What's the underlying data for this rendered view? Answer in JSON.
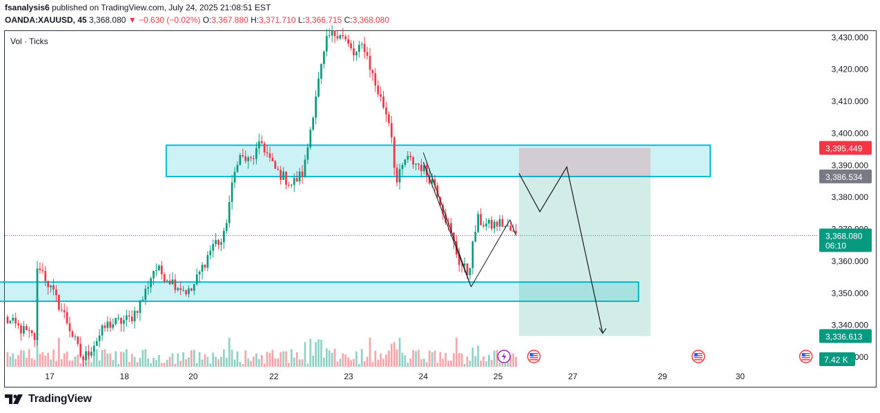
{
  "header": {
    "author": "fsanalysis6",
    "published_text": "published on TradingView.com, July 24, 2025 21:08:51 EST",
    "symbol": "OANDA:XAUUSD, 45",
    "last": "3,368.080",
    "change_arrow": "▼",
    "change": "−0.630 (−0.02%)",
    "o_label": "O:",
    "o_value": "3,367.880",
    "h_label": "H:",
    "h_value": "3,371.710",
    "l_label": "L:",
    "l_value": "3,366.715",
    "c_label": "C:",
    "c_value": "3,368.080"
  },
  "vol_label": "Vol · Ticks",
  "footer": {
    "brand": "TradingView",
    "logo_icon": "tradingview-logo-icon"
  },
  "colors": {
    "up": "#089981",
    "down": "#f23645",
    "zone": "#00bcd4",
    "target": "#089981",
    "stop": "#f23645"
  },
  "chart_data": {
    "type": "candlestick",
    "x_ticks": [
      {
        "label": "17",
        "x": 16.75
      },
      {
        "label": "18",
        "x": 18.0
      },
      {
        "label": "20",
        "x": 19.15
      },
      {
        "label": "22",
        "x": 20.5
      },
      {
        "label": "23",
        "x": 21.75
      },
      {
        "label": "24",
        "x": 23.0
      },
      {
        "label": "25",
        "x": 24.25
      },
      {
        "label": "27",
        "x": 25.5
      },
      {
        "label": "29",
        "x": 27.0
      },
      {
        "label": "30",
        "x": 28.3
      }
    ],
    "y_ticks": [
      3330,
      3340,
      3350,
      3360,
      3370,
      3380,
      3390,
      3400,
      3410,
      3420,
      3430
    ],
    "y_tick_labels": [
      "3,330.000",
      "3,340.000",
      "3,350.000",
      "3,360.000",
      "3,370.000",
      "3,380.000",
      "3,390.000",
      "3,400.000",
      "3,410.000",
      "3,420.000",
      "3,430.000"
    ],
    "ylim": [
      3327,
      3432
    ],
    "xlim": [
      16.0,
      29.6
    ],
    "price_labels": [
      {
        "value": 3395.449,
        "text": "3,395.449",
        "color": "#f23645"
      },
      {
        "value": 3386.534,
        "text": "3,386.534",
        "color": "#787b86"
      },
      {
        "value": 3368.08,
        "text": "3,368.080",
        "sub": "06:10",
        "color": "#089981"
      },
      {
        "value": 3336.613,
        "text": "3,336.613",
        "color": "#089981"
      }
    ],
    "volume_label": "7.42 K",
    "zones": [
      {
        "x0": 18.7,
        "x1": 27.8,
        "y0": 3386.5,
        "y1": 3396.3
      },
      {
        "x0": 15.9,
        "x1": 26.6,
        "y0": 3347.5,
        "y1": 3353.5
      }
    ],
    "position": {
      "x0": 24.6,
      "x1": 26.8,
      "entry": 3386.534,
      "stop": 3395.449,
      "target": 3336.613
    },
    "projection_path": [
      [
        24.6,
        3387.5
      ],
      [
        24.95,
        3375.5
      ],
      [
        25.4,
        3389.5
      ],
      [
        26.0,
        3337.5
      ]
    ],
    "wedge_lines": [
      [
        [
          23.0,
          3394
        ],
        [
          23.8,
          3352
        ]
      ],
      [
        [
          23.0,
          3391
        ],
        [
          23.8,
          3352
        ]
      ],
      [
        [
          23.8,
          3352
        ],
        [
          24.45,
          3373
        ]
      ],
      [
        [
          24.45,
          3373
        ],
        [
          24.55,
          3368
        ]
      ]
    ],
    "anchor_points": [
      [
        16.0,
        3342
      ],
      [
        16.5,
        3336
      ],
      [
        16.55,
        3360
      ],
      [
        16.75,
        3352
      ],
      [
        17.0,
        3343
      ],
      [
        17.3,
        3329
      ],
      [
        17.7,
        3340
      ],
      [
        18.1,
        3342
      ],
      [
        18.3,
        3348
      ],
      [
        18.5,
        3358
      ],
      [
        18.85,
        3353
      ],
      [
        19.1,
        3350
      ],
      [
        19.3,
        3358
      ],
      [
        19.5,
        3366
      ],
      [
        19.65,
        3366
      ],
      [
        19.75,
        3378
      ],
      [
        19.9,
        3393
      ],
      [
        20.1,
        3391
      ],
      [
        20.3,
        3397
      ],
      [
        20.5,
        3389
      ],
      [
        20.8,
        3384
      ],
      [
        21.0,
        3388
      ],
      [
        21.2,
        3412
      ],
      [
        21.4,
        3430
      ],
      [
        21.6,
        3432
      ],
      [
        21.85,
        3424
      ],
      [
        22.0,
        3428
      ],
      [
        22.2,
        3415
      ],
      [
        22.45,
        3403
      ],
      [
        22.55,
        3384
      ],
      [
        22.7,
        3392
      ],
      [
        22.95,
        3390
      ],
      [
        23.2,
        3384
      ],
      [
        23.4,
        3372
      ],
      [
        23.6,
        3360
      ],
      [
        23.75,
        3356
      ],
      [
        23.9,
        3373
      ],
      [
        24.1,
        3371
      ],
      [
        24.3,
        3372
      ],
      [
        24.55,
        3368
      ]
    ]
  }
}
